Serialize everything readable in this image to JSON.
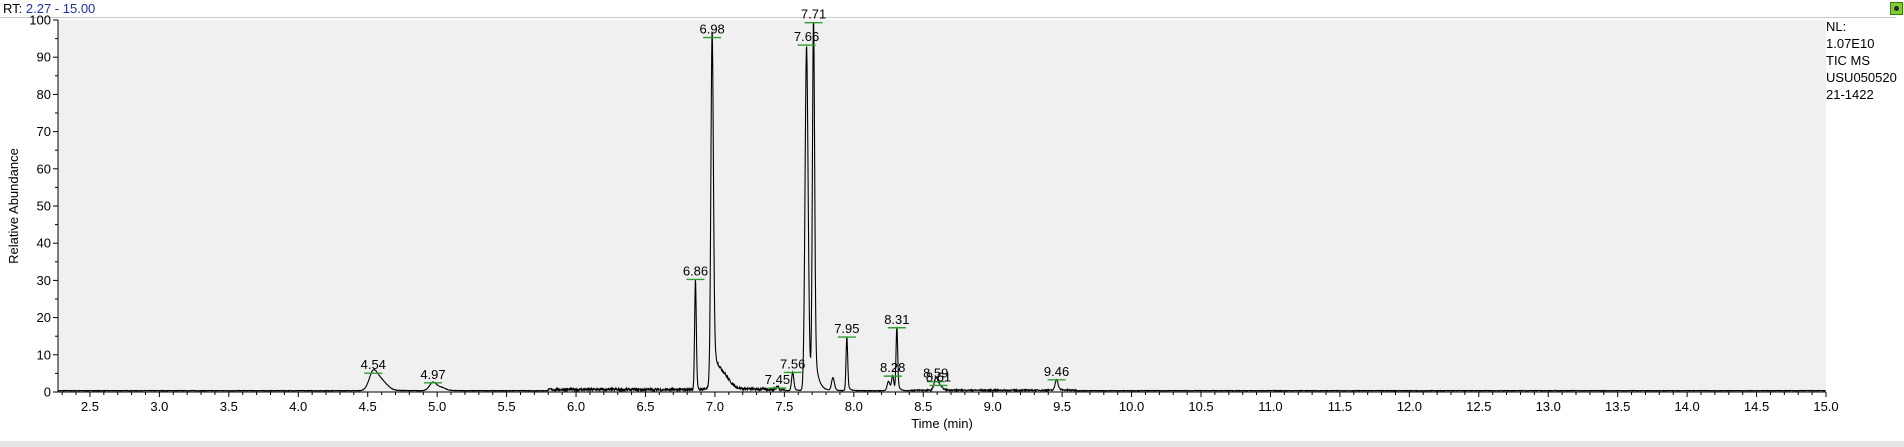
{
  "header": {
    "rt_prefix": "RT:",
    "rt_range": "2.27 - 15.00"
  },
  "info_panel": {
    "nl_label": "NL:",
    "nl_value": "1.07E10",
    "scan_filter": "TIC  MS",
    "file_line1": "USU050520",
    "file_line2": "21-1422"
  },
  "chart_data": {
    "type": "line",
    "title": "",
    "xlabel": "Time (min)",
    "ylabel": "Relative Abundance",
    "xlim": [
      2.27,
      15.0
    ],
    "ylim": [
      0,
      100
    ],
    "xticks": [
      "2.5",
      "3.0",
      "3.5",
      "4.0",
      "4.5",
      "5.0",
      "5.5",
      "6.0",
      "6.5",
      "7.0",
      "7.5",
      "8.0",
      "8.5",
      "9.0",
      "9.5",
      "10.0",
      "10.5",
      "11.0",
      "11.5",
      "12.0",
      "12.5",
      "13.0",
      "13.5",
      "14.0",
      "14.5",
      "15.0"
    ],
    "yticks": [
      "0",
      "10",
      "20",
      "30",
      "40",
      "50",
      "60",
      "70",
      "80",
      "90",
      "100"
    ],
    "baseline": 0.3,
    "peaks": [
      {
        "rt": 4.54,
        "height": 4.8,
        "width": 0.03,
        "tail": 0.06
      },
      {
        "rt": 4.6,
        "height": 2.5,
        "width": 0.04,
        "tail": 0.05
      },
      {
        "rt": 4.97,
        "height": 2.2,
        "width": 0.025,
        "tail": 0.05
      },
      {
        "rt": 5.03,
        "height": 0.8,
        "width": 0.03,
        "tail": 0.04
      },
      {
        "rt": 6.86,
        "height": 30.0,
        "width": 0.006,
        "tail": 0.008
      },
      {
        "rt": 6.98,
        "height": 95.0,
        "width": 0.009,
        "tail": 0.03
      },
      {
        "rt": 7.05,
        "height": 4.0,
        "width": 0.05,
        "tail": 0.15
      },
      {
        "rt": 7.45,
        "height": 0.8,
        "width": 0.01,
        "tail": 0.02
      },
      {
        "rt": 7.56,
        "height": 5.0,
        "width": 0.008,
        "tail": 0.02
      },
      {
        "rt": 7.66,
        "height": 93.0,
        "width": 0.011,
        "tail": 0.02
      },
      {
        "rt": 7.71,
        "height": 99.0,
        "width": 0.008,
        "tail": 0.025
      },
      {
        "rt": 7.85,
        "height": 3.5,
        "width": 0.01,
        "tail": 0.02
      },
      {
        "rt": 7.95,
        "height": 14.5,
        "width": 0.006,
        "tail": 0.015
      },
      {
        "rt": 8.25,
        "height": 2.5,
        "width": 0.01,
        "tail": 0.02
      },
      {
        "rt": 8.28,
        "height": 4.0,
        "width": 0.008,
        "tail": 0.015
      },
      {
        "rt": 8.31,
        "height": 17.0,
        "width": 0.006,
        "tail": 0.015
      },
      {
        "rt": 8.59,
        "height": 2.5,
        "width": 0.012,
        "tail": 0.03
      },
      {
        "rt": 8.61,
        "height": 1.5,
        "width": 0.02,
        "tail": 0.04
      },
      {
        "rt": 9.46,
        "height": 3.0,
        "width": 0.01,
        "tail": 0.03
      }
    ],
    "peak_labels": [
      {
        "label": "4.54",
        "rt": 4.54,
        "y": 4.8
      },
      {
        "label": "4.97",
        "rt": 4.97,
        "y": 2.2
      },
      {
        "label": "6.86",
        "rt": 6.86,
        "y": 30.0
      },
      {
        "label": "6.98",
        "rt": 6.98,
        "y": 95.0
      },
      {
        "label": "7.45",
        "rt": 7.45,
        "y": 0.8
      },
      {
        "label": "7.56",
        "rt": 7.56,
        "y": 5.0
      },
      {
        "label": "7.66",
        "rt": 7.66,
        "y": 93.0
      },
      {
        "label": "7.71",
        "rt": 7.71,
        "y": 99.0
      },
      {
        "label": "7.95",
        "rt": 7.95,
        "y": 14.5
      },
      {
        "label": "8.28",
        "rt": 8.28,
        "y": 4.0
      },
      {
        "label": "8.31",
        "rt": 8.31,
        "y": 17.0
      },
      {
        "label": "8.59",
        "rt": 8.59,
        "y": 2.5
      },
      {
        "label": "8.61",
        "rt": 8.61,
        "y": 1.5
      },
      {
        "label": "9.46",
        "rt": 9.46,
        "y": 3.0
      }
    ],
    "grid": false,
    "colors": {
      "plot_bg": "#f0f0f0",
      "trace": "#000000",
      "marker": "#2e9e2e",
      "frame": "#000000"
    }
  }
}
